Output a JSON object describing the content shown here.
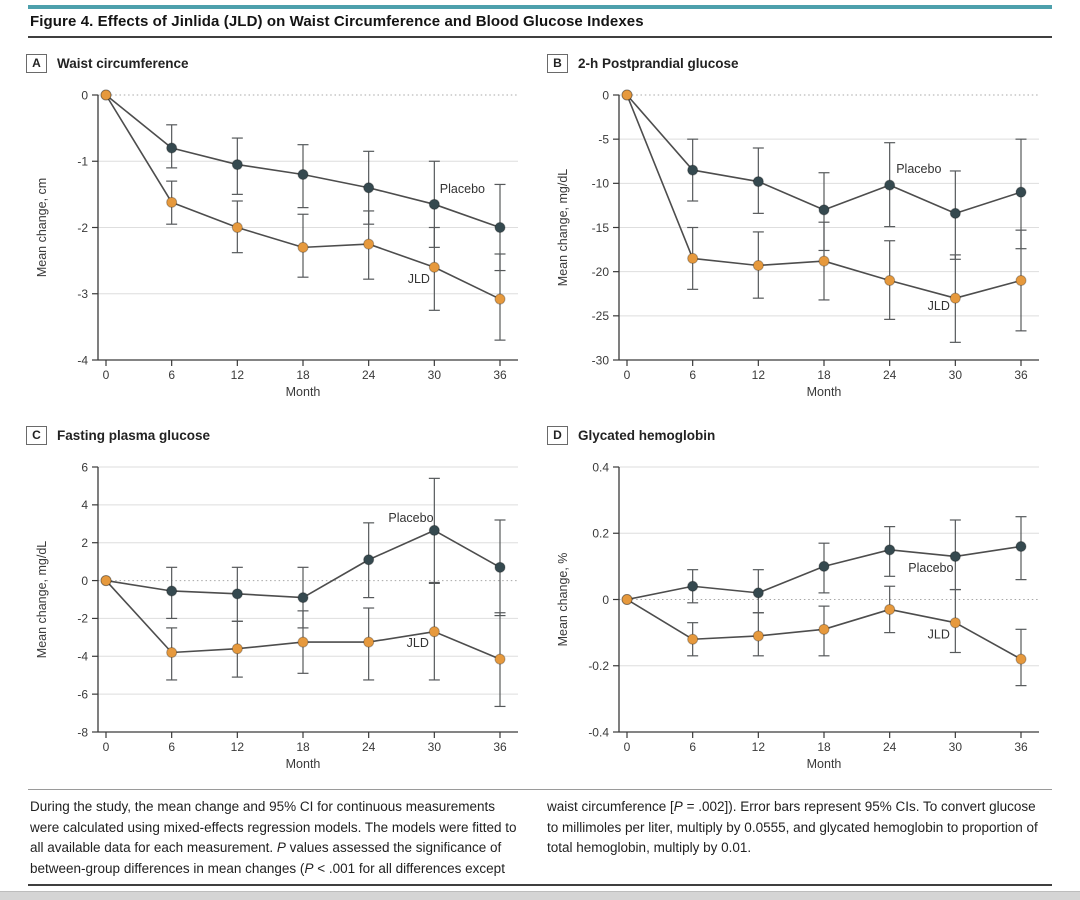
{
  "page": {
    "title": "Figure 4. Effects of Jinlida (JLD) on Waist Circumference and Blood Glucose Indexes",
    "palette": {
      "accent": "#4da0ac",
      "placebo": "#35494f",
      "jld": "#e6993d",
      "line": "#4d4d4d",
      "error": "#56595b"
    },
    "caption": {
      "left": [
        {
          "t": "During the study, the mean change and 95% CI for continuous measurements were calculated using mixed-effects regression models. The models were fitted to all available data for each measurement. "
        },
        {
          "t": "P",
          "i": true
        },
        {
          "t": " values assessed the significance of between-group differences in mean changes ("
        },
        {
          "t": "P",
          "i": true
        },
        {
          "t": " < .001 for all differences except"
        }
      ],
      "right": [
        {
          "t": "waist circumference ["
        },
        {
          "t": "P",
          "i": true
        },
        {
          "t": " = .002]). Error bars represent 95% CIs. To convert glucose to millimoles per liter, multiply by 0.0555, and glycated hemoglobin to proportion of total hemoglobin, multiply by 0.01."
        }
      ]
    }
  },
  "chart_data": [
    {
      "type": "line",
      "panel": "A",
      "title": "Waist circumference",
      "xlabel": "Month",
      "ylabel": "Mean change, cm",
      "x": [
        0,
        6,
        12,
        18,
        24,
        30,
        36
      ],
      "xticklabels": [
        "0",
        "6",
        "12",
        "18",
        "24",
        "30",
        "36"
      ],
      "ylim": [
        -4,
        0
      ],
      "yticks": [
        0,
        -1,
        -2,
        -3,
        -4
      ],
      "yticklabels": [
        "0",
        "-1",
        "-2",
        "-3",
        "-4"
      ],
      "grid": true,
      "zero_line_dotted": true,
      "series": [
        {
          "name": "Placebo",
          "color_key": "placebo",
          "values": [
            0,
            -0.8,
            -1.05,
            -1.2,
            -1.4,
            -1.65,
            -2.0
          ],
          "ci_high": [
            null,
            -0.45,
            -0.65,
            -0.75,
            -0.85,
            -1.0,
            -1.35
          ],
          "ci_low": [
            null,
            -1.1,
            -1.5,
            -1.7,
            -1.95,
            -2.3,
            -2.65
          ],
          "label": {
            "text": "Placebo",
            "x": 30.5,
            "y": -1.42,
            "anchor": "start"
          }
        },
        {
          "name": "JLD",
          "color_key": "jld",
          "values": [
            0,
            -1.62,
            -2.0,
            -2.3,
            -2.25,
            -2.6,
            -3.08
          ],
          "ci_high": [
            null,
            -1.3,
            -1.6,
            -1.8,
            -1.75,
            -2.0,
            -2.4
          ],
          "ci_low": [
            null,
            -1.95,
            -2.38,
            -2.75,
            -2.78,
            -3.25,
            -3.7
          ],
          "label": {
            "text": "JLD",
            "x": 29.6,
            "y": -2.78,
            "anchor": "end"
          }
        }
      ]
    },
    {
      "type": "line",
      "panel": "B",
      "title": "2-h Postprandial glucose",
      "xlabel": "Month",
      "ylabel": "Mean change, mg/dL",
      "x": [
        0,
        6,
        12,
        18,
        24,
        30,
        36
      ],
      "xticklabels": [
        "0",
        "6",
        "12",
        "18",
        "24",
        "30",
        "36"
      ],
      "ylim": [
        -30,
        0
      ],
      "yticks": [
        0,
        -5,
        -10,
        -15,
        -20,
        -25,
        -30
      ],
      "yticklabels": [
        "0",
        "-5",
        "-10",
        "-15",
        "-20",
        "-25",
        "-30"
      ],
      "grid": true,
      "zero_line_dotted": true,
      "series": [
        {
          "name": "Placebo",
          "color_key": "placebo",
          "values": [
            0,
            -8.5,
            -9.8,
            -13,
            -10.2,
            -13.4,
            -11
          ],
          "ci_high": [
            null,
            -5,
            -6,
            -8.8,
            -5.4,
            -8.6,
            -5
          ],
          "ci_low": [
            null,
            -12,
            -13.4,
            -17.6,
            -14.9,
            -18.6,
            -17.4
          ],
          "label": {
            "text": "Placebo",
            "x": 24.6,
            "y": -8.4,
            "anchor": "start"
          }
        },
        {
          "name": "JLD",
          "color_key": "jld",
          "values": [
            0,
            -18.5,
            -19.3,
            -18.8,
            -21,
            -23,
            -21
          ],
          "ci_high": [
            null,
            -15,
            -15.5,
            -14.4,
            -16.5,
            -18.1,
            -15.3
          ],
          "ci_low": [
            null,
            -22,
            -23,
            -23.2,
            -25.4,
            -28,
            -26.7
          ],
          "label": {
            "text": "JLD",
            "x": 29.5,
            "y": -23.9,
            "anchor": "end"
          }
        }
      ]
    },
    {
      "type": "line",
      "panel": "C",
      "title": "Fasting plasma glucose",
      "xlabel": "Month",
      "ylabel": "Mean change, mg/dL",
      "x": [
        0,
        6,
        12,
        18,
        24,
        30,
        36
      ],
      "xticklabels": [
        "0",
        "6",
        "12",
        "18",
        "24",
        "30",
        "36"
      ],
      "ylim": [
        -8,
        6
      ],
      "yticks": [
        6,
        4,
        2,
        0,
        -2,
        -4,
        -6,
        -8
      ],
      "yticklabels": [
        "6",
        "4",
        "2",
        "0",
        "-2",
        "-4",
        "-6",
        "-8"
      ],
      "grid": true,
      "zero_line_dotted": true,
      "series": [
        {
          "name": "Placebo",
          "color_key": "placebo",
          "values": [
            0,
            -0.55,
            -0.7,
            -0.9,
            1.1,
            2.65,
            0.7
          ],
          "ci_high": [
            null,
            0.7,
            0.7,
            0.7,
            3.05,
            5.4,
            3.2
          ],
          "ci_low": [
            null,
            -2.0,
            -2.15,
            -2.5,
            -0.9,
            -0.1,
            -1.85
          ],
          "label": {
            "text": "Placebo",
            "x": 25.8,
            "y": 3.3,
            "anchor": "start"
          }
        },
        {
          "name": "JLD",
          "color_key": "jld",
          "values": [
            0,
            -3.8,
            -3.6,
            -3.25,
            -3.25,
            -2.7,
            -4.15
          ],
          "ci_high": [
            null,
            -2.5,
            -2.15,
            -1.6,
            -1.45,
            -0.15,
            -1.7
          ],
          "ci_low": [
            null,
            -5.25,
            -5.1,
            -4.9,
            -5.25,
            -5.25,
            -6.65
          ],
          "label": {
            "text": "JLD",
            "x": 29.5,
            "y": -3.3,
            "anchor": "end"
          }
        }
      ]
    },
    {
      "type": "line",
      "panel": "D",
      "title": "Glycated hemoglobin",
      "xlabel": "Month",
      "ylabel": "Mean change, %",
      "x": [
        0,
        6,
        12,
        18,
        24,
        30,
        36
      ],
      "xticklabels": [
        "0",
        "6",
        "12",
        "18",
        "24",
        "30",
        "36"
      ],
      "ylim": [
        -0.4,
        0.4
      ],
      "yticks": [
        0.4,
        0.2,
        0,
        -0.2,
        -0.4
      ],
      "yticklabels": [
        "0.4",
        "0.2",
        "0",
        "-0.2",
        "-0.4"
      ],
      "grid": true,
      "zero_line_dotted": true,
      "series": [
        {
          "name": "Placebo",
          "color_key": "placebo",
          "values": [
            0,
            0.04,
            0.02,
            0.1,
            0.15,
            0.13,
            0.16
          ],
          "ci_high": [
            null,
            0.09,
            0.09,
            0.17,
            0.22,
            0.24,
            0.25
          ],
          "ci_low": [
            null,
            -0.01,
            -0.04,
            0.02,
            0.07,
            0.03,
            0.06
          ],
          "label": {
            "text": "Placebo",
            "x": 25.7,
            "y": 0.095,
            "anchor": "start"
          }
        },
        {
          "name": "JLD",
          "color_key": "jld",
          "values": [
            0,
            -0.12,
            -0.11,
            -0.09,
            -0.03,
            -0.07,
            -0.18
          ],
          "ci_high": [
            null,
            -0.07,
            -0.04,
            -0.02,
            0.04,
            0.03,
            -0.09
          ],
          "ci_low": [
            null,
            -0.17,
            -0.17,
            -0.17,
            -0.1,
            -0.16,
            -0.26
          ],
          "label": {
            "text": "JLD",
            "x": 29.5,
            "y": -0.105,
            "anchor": "end"
          }
        }
      ]
    }
  ]
}
